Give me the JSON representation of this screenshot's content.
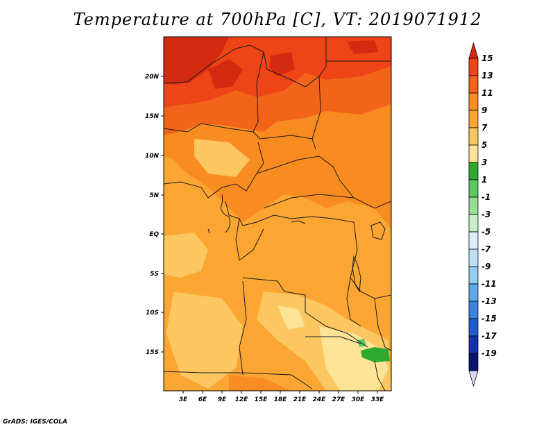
{
  "title": "Temperature at 700hPa [C], VT: 2019071912",
  "credit": "GrADS: IGES/COLA",
  "map": {
    "y_labels": [
      "20N",
      "15N",
      "10N",
      "5N",
      "EQ",
      "5S",
      "10S",
      "15S"
    ],
    "x_labels": [
      "3E",
      "6E",
      "9E",
      "12E",
      "15E",
      "18E",
      "21E",
      "24E",
      "27E",
      "30E",
      "33E"
    ]
  },
  "colorbar": {
    "labels": [
      "15",
      "13",
      "11",
      "9",
      "7",
      "5",
      "3",
      "1",
      "-1",
      "-3",
      "-5",
      "-7",
      "-9",
      "-11",
      "-13",
      "-15",
      "-17",
      "-19"
    ],
    "colors": [
      "#d42a10",
      "#ee4418",
      "#f2641a",
      "#f88c20",
      "#fba632",
      "#fcc660",
      "#fde396",
      "#2daa2d",
      "#5ec85e",
      "#96dc96",
      "#c8f0c8",
      "#dceff8",
      "#bde0f7",
      "#94cdf0",
      "#5ea8ea",
      "#3c80e0",
      "#1e5ccc",
      "#1432aa",
      "#0a1470",
      "#d8d8f4"
    ]
  }
}
